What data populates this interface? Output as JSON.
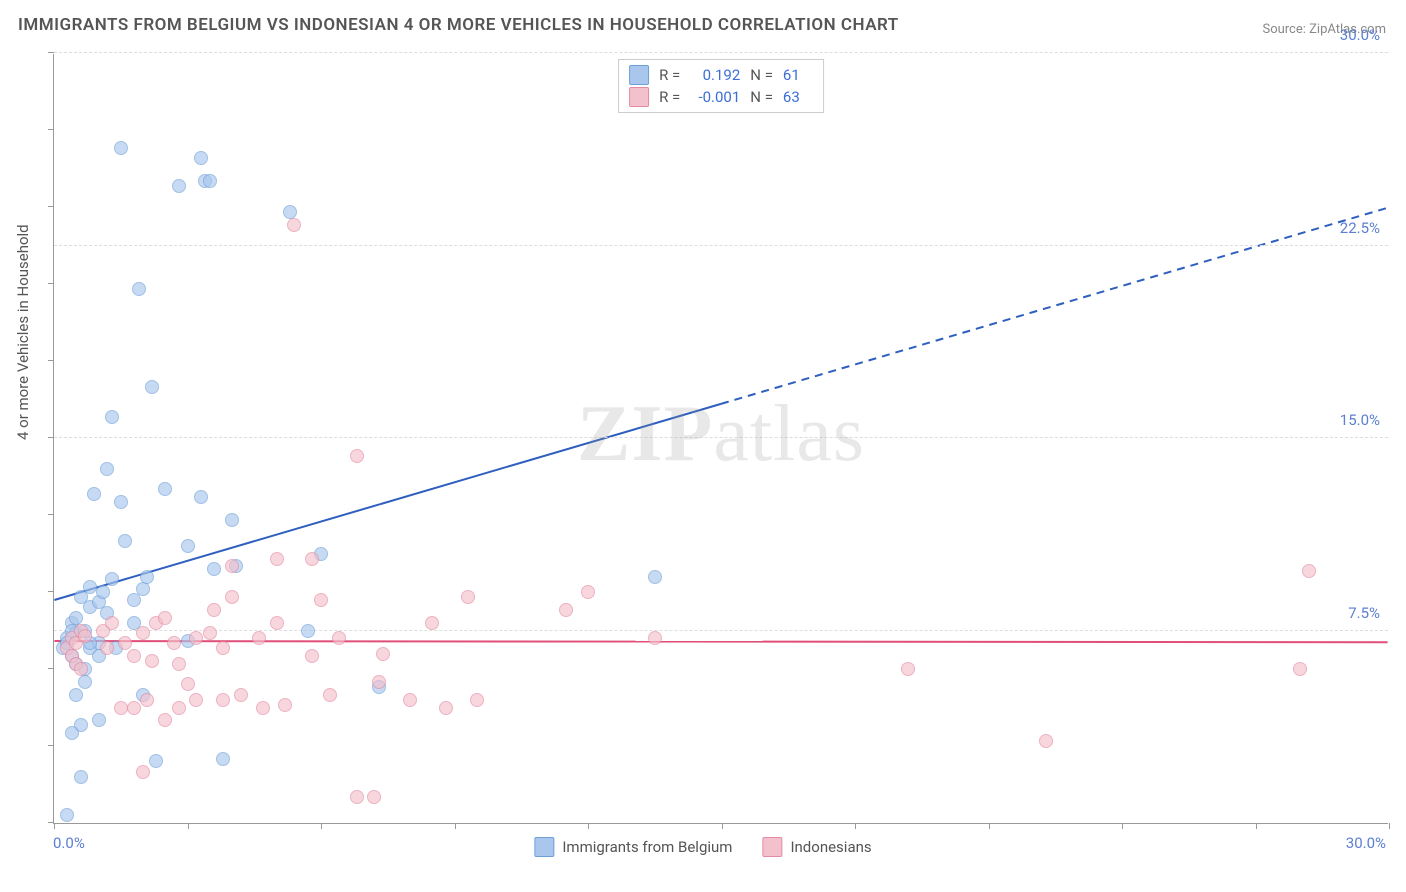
{
  "title": "IMMIGRANTS FROM BELGIUM VS INDONESIAN 4 OR MORE VEHICLES IN HOUSEHOLD CORRELATION CHART",
  "source": "Source: ZipAtlas.com",
  "watermark": "ZIPatlas",
  "chart": {
    "type": "scatter",
    "xlim": [
      0,
      30
    ],
    "ylim": [
      0,
      30
    ],
    "x_origin_label": "0.0%",
    "x_max_label": "30.0%",
    "y_tick_labels": [
      "7.5%",
      "15.0%",
      "22.5%",
      "30.0%"
    ],
    "y_tick_values": [
      7.5,
      15.0,
      22.5,
      30.0
    ],
    "x_tick_values": [
      0,
      3,
      6,
      9,
      12,
      15,
      18,
      21,
      24,
      27,
      30
    ],
    "y_minor_ticks": [
      0,
      3,
      6,
      9,
      12,
      15,
      18,
      21,
      24,
      27,
      30
    ],
    "y_axis_label": "4 or more Vehicles in Household",
    "grid_color": "#dddddd",
    "background_color": "#ffffff",
    "axis_color": "#999999",
    "series": [
      {
        "name": "Immigrants from Belgium",
        "color_fill": "#a9c7ed",
        "color_stroke": "#6f9fd8",
        "r_label": "R =",
        "r_value": "0.192",
        "n_label": "N =",
        "n_value": "61",
        "trend": {
          "x1": 0,
          "y1": 8.7,
          "x2": 30,
          "y2": 24.0,
          "solid_until_x": 15,
          "color": "#2e5fbf",
          "width": 2
        },
        "points": [
          [
            0.2,
            6.8
          ],
          [
            0.3,
            7.2
          ],
          [
            0.3,
            7.0
          ],
          [
            0.4,
            6.5
          ],
          [
            0.4,
            7.8
          ],
          [
            0.5,
            6.2
          ],
          [
            0.5,
            8.0
          ],
          [
            0.5,
            7.4
          ],
          [
            0.6,
            3.8
          ],
          [
            0.6,
            8.8
          ],
          [
            0.7,
            5.5
          ],
          [
            0.7,
            7.5
          ],
          [
            0.8,
            8.4
          ],
          [
            0.8,
            9.2
          ],
          [
            0.8,
            6.8
          ],
          [
            0.9,
            12.8
          ],
          [
            1.0,
            7.0
          ],
          [
            1.0,
            8.6
          ],
          [
            0.3,
            0.3
          ],
          [
            1.1,
            9.0
          ],
          [
            1.2,
            13.8
          ],
          [
            1.2,
            8.2
          ],
          [
            1.3,
            15.8
          ],
          [
            1.3,
            9.5
          ],
          [
            1.5,
            26.3
          ],
          [
            1.5,
            12.5
          ],
          [
            1.6,
            11.0
          ],
          [
            1.8,
            8.7
          ],
          [
            1.9,
            20.8
          ],
          [
            2.0,
            9.1
          ],
          [
            2.0,
            5.0
          ],
          [
            2.1,
            9.6
          ],
          [
            2.2,
            17.0
          ],
          [
            2.3,
            2.4
          ],
          [
            2.5,
            13.0
          ],
          [
            2.8,
            24.8
          ],
          [
            0.6,
            1.8
          ],
          [
            3.0,
            10.8
          ],
          [
            3.0,
            7.1
          ],
          [
            1.0,
            4.0
          ],
          [
            3.3,
            25.9
          ],
          [
            3.3,
            12.7
          ],
          [
            3.4,
            25.0
          ],
          [
            3.5,
            25.0
          ],
          [
            3.6,
            9.9
          ],
          [
            3.8,
            2.5
          ],
          [
            4.0,
            11.8
          ],
          [
            4.1,
            10.0
          ],
          [
            5.3,
            23.8
          ],
          [
            0.8,
            7.0
          ],
          [
            5.7,
            7.5
          ],
          [
            6.0,
            10.5
          ],
          [
            0.5,
            5.0
          ],
          [
            7.3,
            5.3
          ],
          [
            0.4,
            3.5
          ],
          [
            0.4,
            7.5
          ],
          [
            0.7,
            6.0
          ],
          [
            1.0,
            6.5
          ],
          [
            1.4,
            6.8
          ],
          [
            1.8,
            7.8
          ],
          [
            13.5,
            9.6
          ]
        ]
      },
      {
        "name": "Indonesians",
        "color_fill": "#f3c1cc",
        "color_stroke": "#e48ba3",
        "r_label": "R =",
        "r_value": "-0.001",
        "n_label": "N =",
        "n_value": "63",
        "trend": {
          "x1": 0,
          "y1": 7.1,
          "x2": 30,
          "y2": 7.05,
          "solid_until_x": 30,
          "color": "#e04f7a",
          "width": 2
        },
        "points": [
          [
            0.3,
            6.8
          ],
          [
            0.4,
            7.2
          ],
          [
            0.4,
            6.5
          ],
          [
            0.5,
            7.0
          ],
          [
            0.5,
            6.2
          ],
          [
            0.6,
            7.5
          ],
          [
            0.6,
            6.0
          ],
          [
            0.7,
            7.3
          ],
          [
            1.1,
            7.5
          ],
          [
            1.2,
            6.8
          ],
          [
            1.3,
            7.8
          ],
          [
            1.5,
            4.5
          ],
          [
            1.6,
            7.0
          ],
          [
            1.8,
            6.5
          ],
          [
            1.8,
            4.5
          ],
          [
            2.0,
            7.4
          ],
          [
            2.0,
            2.0
          ],
          [
            2.1,
            4.8
          ],
          [
            2.2,
            6.3
          ],
          [
            2.3,
            7.8
          ],
          [
            2.5,
            8.0
          ],
          [
            2.5,
            4.0
          ],
          [
            2.7,
            7.0
          ],
          [
            2.8,
            4.5
          ],
          [
            2.8,
            6.2
          ],
          [
            3.0,
            5.4
          ],
          [
            3.2,
            7.2
          ],
          [
            3.2,
            4.8
          ],
          [
            3.5,
            7.4
          ],
          [
            3.6,
            8.3
          ],
          [
            3.8,
            6.8
          ],
          [
            3.8,
            4.8
          ],
          [
            4.0,
            8.8
          ],
          [
            4.0,
            10.0
          ],
          [
            4.2,
            5.0
          ],
          [
            4.6,
            7.2
          ],
          [
            4.7,
            4.5
          ],
          [
            5.0,
            10.3
          ],
          [
            5.0,
            7.8
          ],
          [
            5.2,
            4.6
          ],
          [
            5.4,
            23.3
          ],
          [
            5.8,
            6.5
          ],
          [
            5.8,
            10.3
          ],
          [
            6.0,
            8.7
          ],
          [
            6.2,
            5.0
          ],
          [
            6.4,
            7.2
          ],
          [
            6.8,
            14.3
          ],
          [
            6.8,
            1.0
          ],
          [
            7.2,
            1.0
          ],
          [
            7.3,
            5.5
          ],
          [
            7.4,
            6.6
          ],
          [
            8.0,
            4.8
          ],
          [
            8.5,
            7.8
          ],
          [
            8.8,
            4.5
          ],
          [
            9.3,
            8.8
          ],
          [
            9.5,
            4.8
          ],
          [
            11.5,
            8.3
          ],
          [
            12.0,
            9.0
          ],
          [
            13.5,
            7.2
          ],
          [
            19.2,
            6.0
          ],
          [
            22.3,
            3.2
          ],
          [
            28.0,
            6.0
          ],
          [
            28.2,
            9.8
          ]
        ]
      }
    ]
  }
}
